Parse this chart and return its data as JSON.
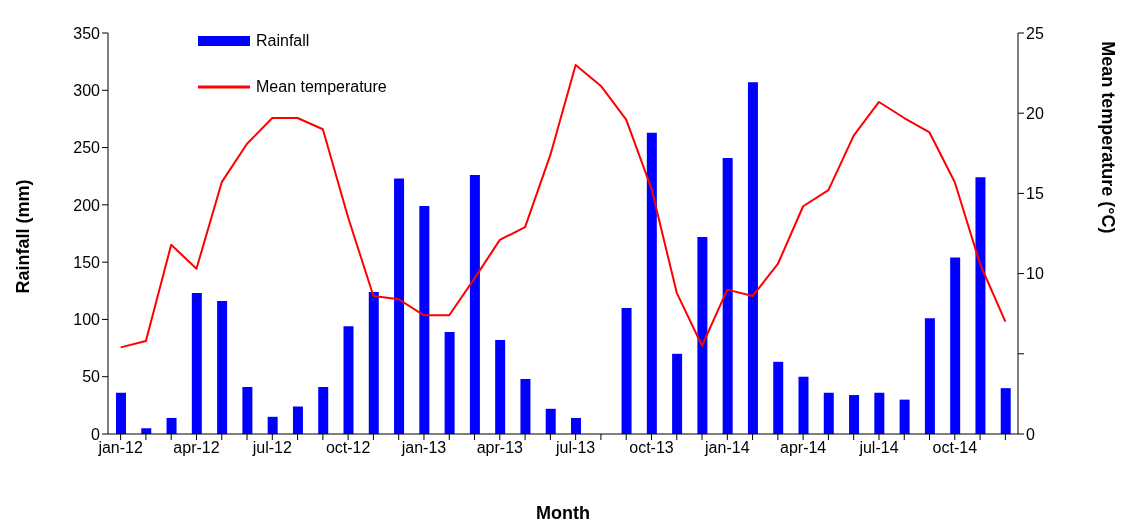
{
  "chart_data": {
    "type": "bar",
    "xlabel": "Month",
    "ylabel": "Rainfall (mm)",
    "y2label": "Mean temperature  (°C)",
    "categories": [
      "jan-12",
      null,
      null,
      "apr-12",
      null,
      null,
      "jul-12",
      null,
      null,
      "oct-12",
      null,
      null,
      "jan-13",
      null,
      null,
      "apr-13",
      null,
      null,
      "jul-13",
      null,
      null,
      "oct-13",
      null,
      null,
      "jan-14",
      null,
      null,
      "apr-14",
      null,
      null,
      "jul-14",
      null,
      null,
      "oct-14",
      null,
      null
    ],
    "series": [
      {
        "name": "Rainfall",
        "color": "#0000ff",
        "values": [
          36,
          5,
          14,
          123,
          116,
          41,
          15,
          24,
          41,
          94,
          124,
          223,
          199,
          89,
          226,
          82,
          48,
          22,
          14,
          0,
          110,
          263,
          70,
          172,
          241,
          307,
          63,
          50,
          36,
          34,
          36,
          30,
          101,
          154,
          224,
          40
        ]
      },
      {
        "name": "Mean temperature",
        "type": "line",
        "axis": "y2",
        "color": "#ff0000",
        "values": [
          5.4,
          5.8,
          11.8,
          10.3,
          15.7,
          18.1,
          19.7,
          19.7,
          19.0,
          13.5,
          8.6,
          8.4,
          7.4,
          7.4,
          9.7,
          12.1,
          12.9,
          17.4,
          23.0,
          21.7,
          19.6,
          15.3,
          8.8,
          5.5,
          9.0,
          8.6,
          10.6,
          14.2,
          15.2,
          18.6,
          20.7,
          19.7,
          18.8,
          15.7,
          10.6,
          7.0
        ]
      }
    ],
    "ylim": [
      0,
      350
    ],
    "yticks": [
      0,
      50,
      100,
      150,
      200,
      250,
      300,
      350
    ],
    "y2lim": [
      0,
      25
    ],
    "y2ticks": [
      0,
      {
        "value": 5,
        "label": null
      },
      10,
      15,
      20,
      25
    ],
    "grid": false,
    "legend": "top left",
    "marker": "none",
    "line_style": "solid"
  }
}
